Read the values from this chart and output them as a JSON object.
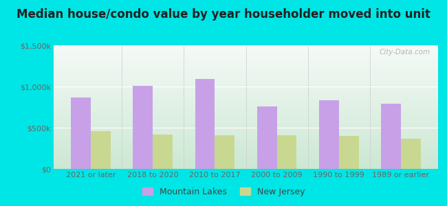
{
  "title": "Median house/condo value by year householder moved into unit",
  "categories": [
    "2021 or later",
    "2018 to 2020",
    "2010 to 2017",
    "2000 to 2009",
    "1990 to 1999",
    "1989 or earlier"
  ],
  "mountain_lakes": [
    870000,
    1010000,
    1090000,
    760000,
    830000,
    790000
  ],
  "new_jersey": [
    455000,
    415000,
    405000,
    405000,
    400000,
    365000
  ],
  "ml_color": "#c8a0e8",
  "nj_color": "#c8d890",
  "background_outer": "#00e5e5",
  "grad_bottom": "#cce8d4",
  "grad_top": "#f5faf7",
  "ylim": [
    0,
    1500000
  ],
  "yticks": [
    0,
    500000,
    1000000,
    1500000
  ],
  "ytick_labels": [
    "$0",
    "$500k",
    "$1,000k",
    "$1,500k"
  ],
  "legend_ml": "Mountain Lakes",
  "legend_nj": "New Jersey",
  "watermark": "City-Data.com",
  "bar_width": 0.32,
  "title_fontsize": 12,
  "tick_fontsize": 8,
  "legend_fontsize": 9
}
